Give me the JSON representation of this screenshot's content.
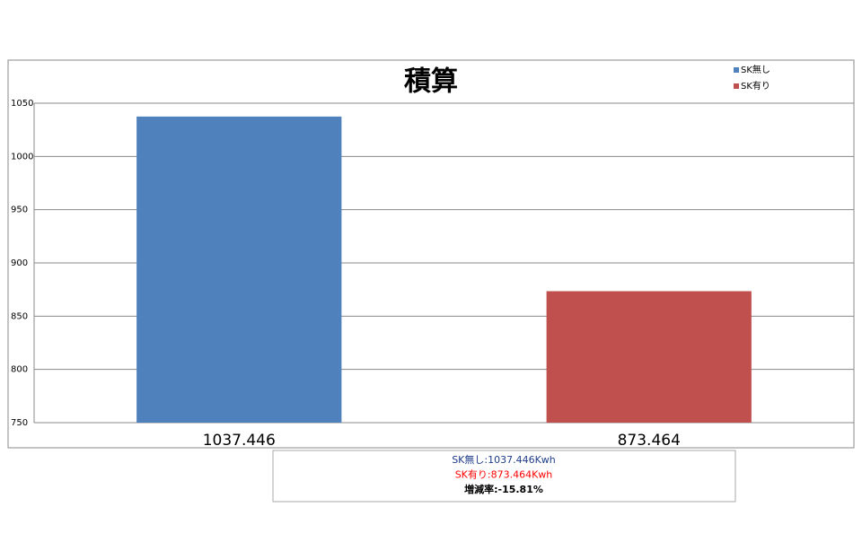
{
  "chart_data": {
    "type": "bar",
    "title": "積算",
    "categories": [
      "1037.446",
      "873.464"
    ],
    "series": [
      {
        "name": "SK無し",
        "color": "#4f81bd",
        "values": [
          1037.446,
          null
        ]
      },
      {
        "name": "SK有り",
        "color": "#c0504d",
        "values": [
          null,
          873.464
        ]
      }
    ],
    "ylim": [
      750,
      1050
    ],
    "yticks": [
      750,
      800,
      850,
      900,
      950,
      1000,
      1050
    ],
    "grid": true,
    "legend": "top-right",
    "notes": [
      {
        "text": "SK無し:1037.446Kwh",
        "color": "#1f3d8a"
      },
      {
        "text": "SK有り:873.464Kwh",
        "color": "#ff0000"
      },
      {
        "text": "増減率:-15.81%",
        "color": "#000000"
      }
    ]
  }
}
